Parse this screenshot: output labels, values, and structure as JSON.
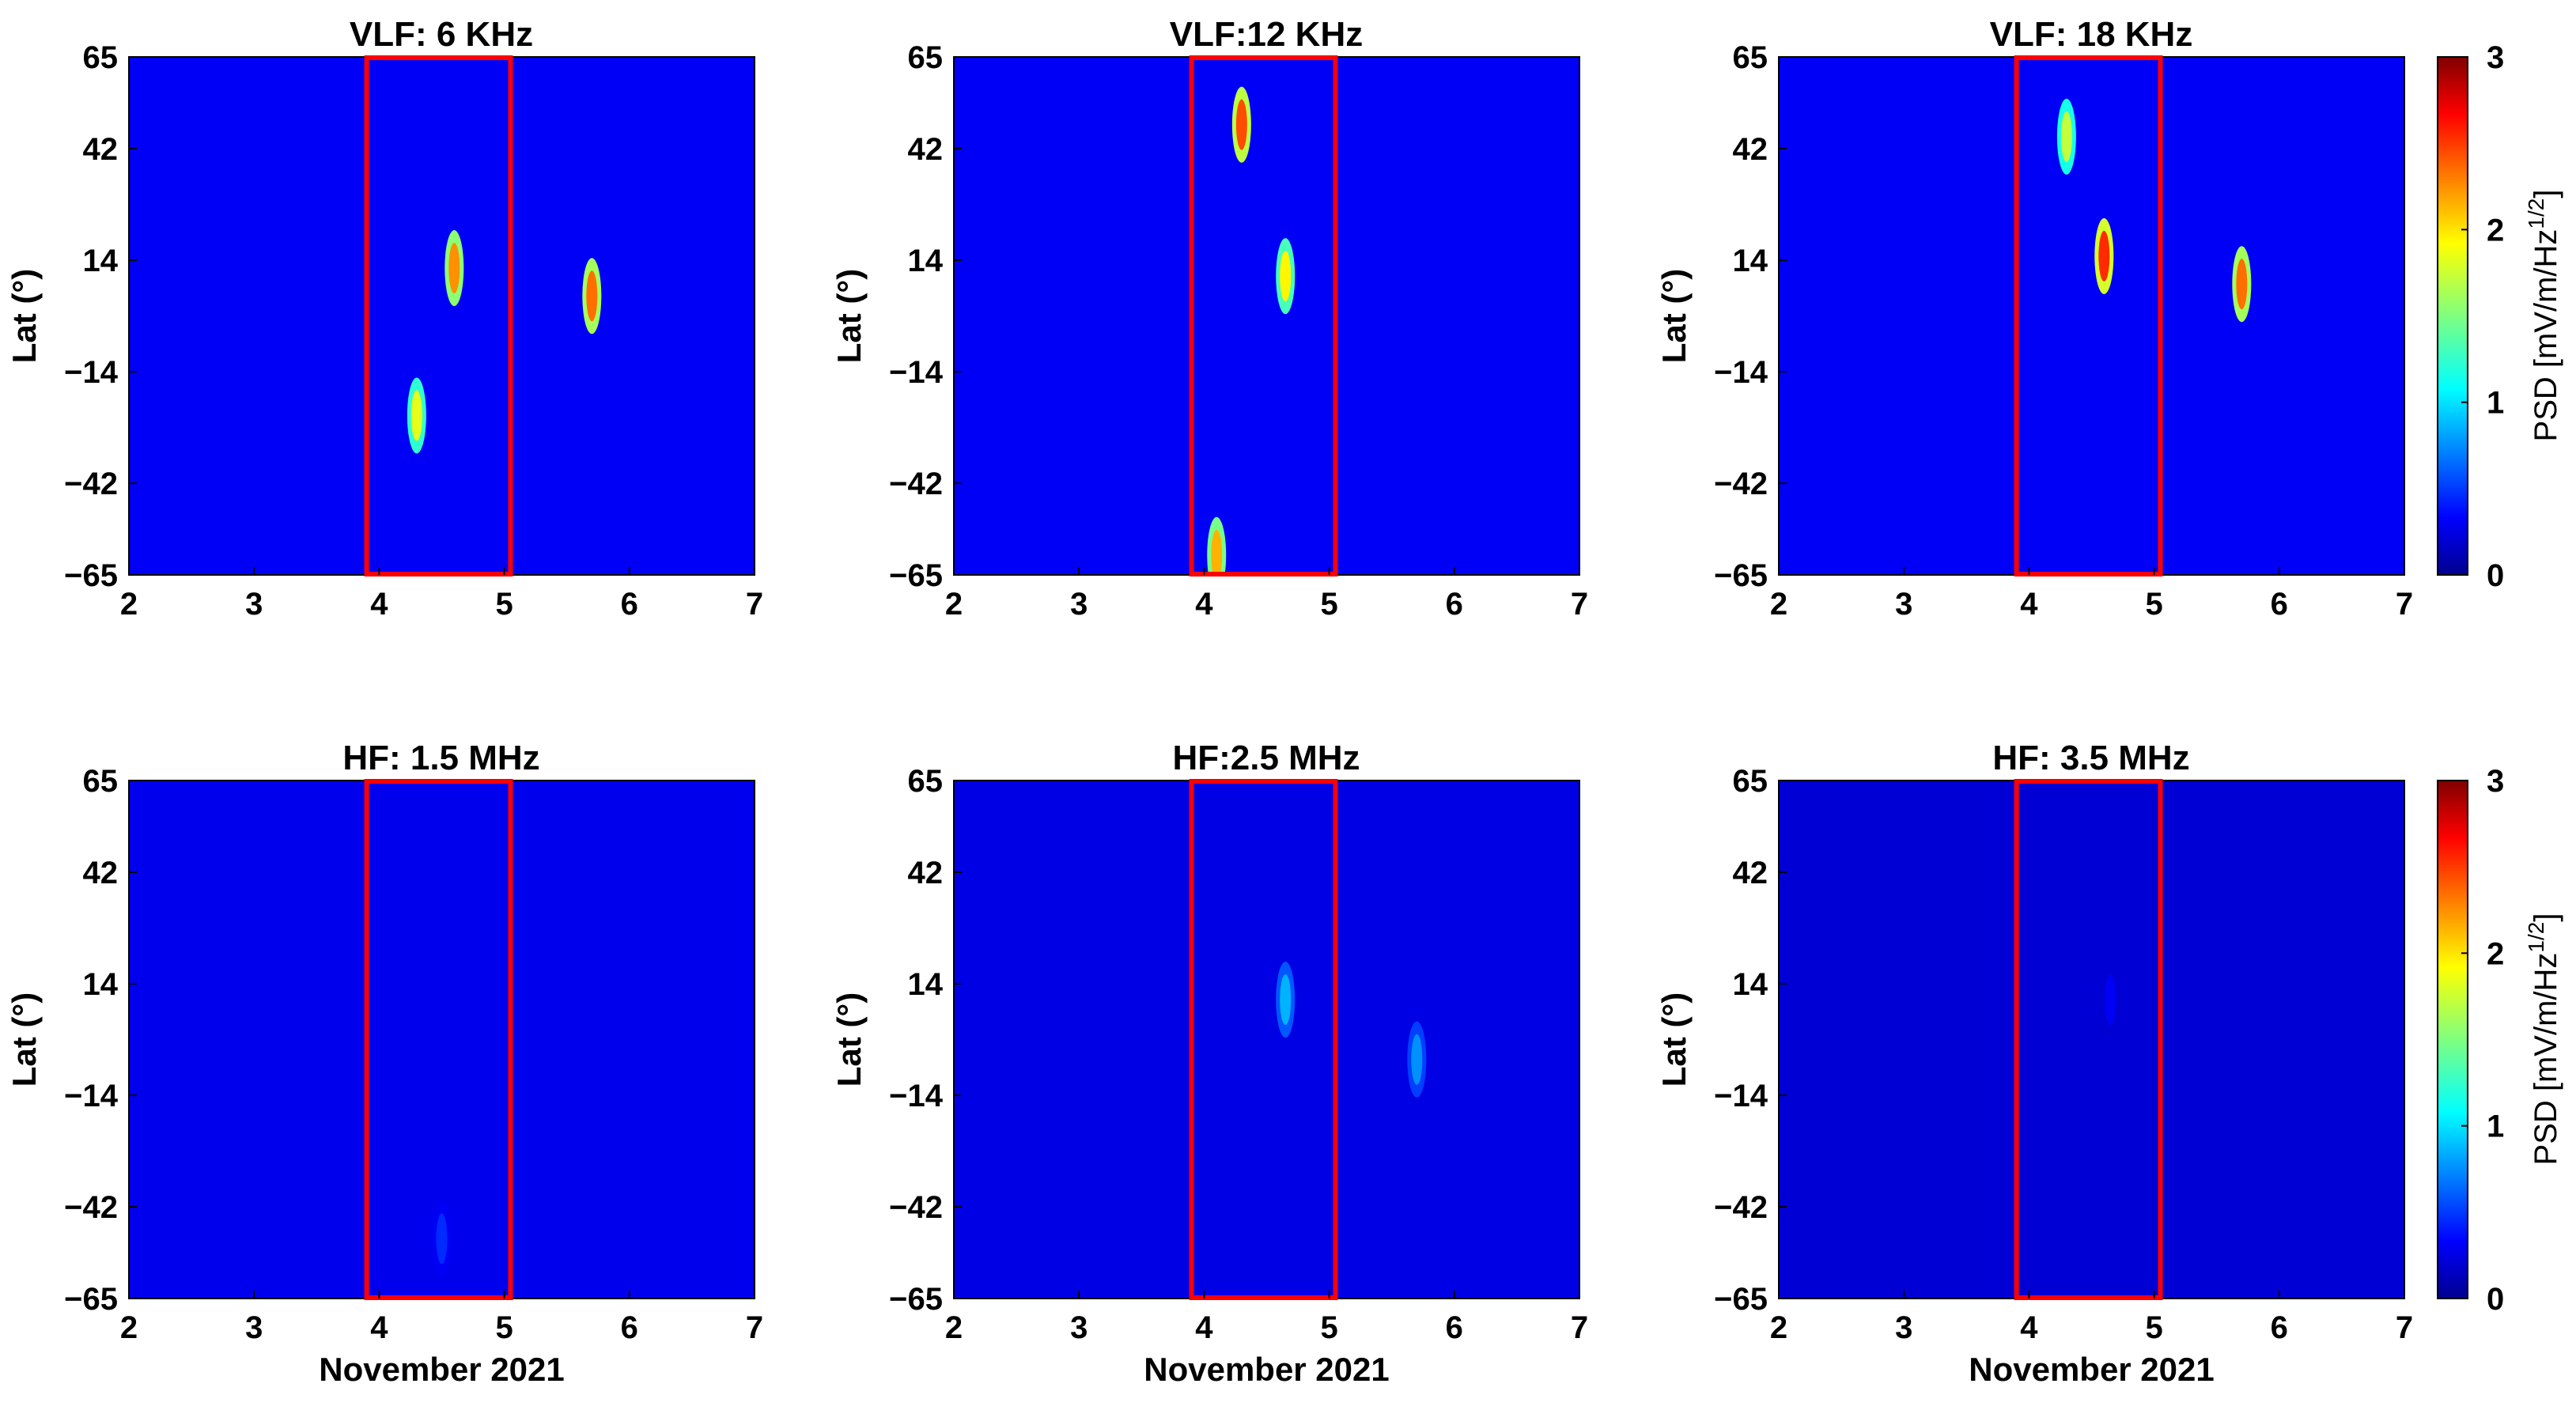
{
  "chart_data": [
    {
      "type": "heatmap",
      "title": "VLF: 6 KHz",
      "xlabel": "",
      "ylabel": "Lat (°)",
      "xlim": [
        2,
        7
      ],
      "ylim": [
        -65,
        65
      ],
      "xticks": [
        "2",
        "3",
        "4",
        "5",
        "6",
        "7"
      ],
      "yticks": [
        "65",
        "42",
        "14",
        "-14",
        "-42",
        "-65"
      ],
      "highlight_box": {
        "x_from": 3.9,
        "x_to": 5.05,
        "color": "#ff0000"
      },
      "intensity_level": "high",
      "hotspots": [
        {
          "x": 4.6,
          "y": 12,
          "value": 2.2
        },
        {
          "x": 5.7,
          "y": 5,
          "value": 2.3
        },
        {
          "x": 4.3,
          "y": -25,
          "value": 1.8
        }
      ]
    },
    {
      "type": "heatmap",
      "title": "VLF:12 KHz",
      "xlabel": "",
      "ylabel": "Lat (°)",
      "xlim": [
        2,
        7
      ],
      "ylim": [
        -65,
        65
      ],
      "xticks": [
        "2",
        "3",
        "4",
        "5",
        "6",
        "7"
      ],
      "yticks": [
        "65",
        "42",
        "14",
        "-14",
        "-42",
        "-65"
      ],
      "highlight_box": {
        "x_from": 3.9,
        "x_to": 5.05,
        "color": "#ff0000"
      },
      "intensity_level": "high",
      "hotspots": [
        {
          "x": 4.3,
          "y": 48,
          "value": 2.4
        },
        {
          "x": 4.65,
          "y": 10,
          "value": 1.9
        },
        {
          "x": 4.1,
          "y": -60,
          "value": 2.1
        }
      ]
    },
    {
      "type": "heatmap",
      "title": "VLF: 18 KHz",
      "xlabel": "",
      "ylabel": "Lat (°)",
      "xlim": [
        2,
        7
      ],
      "ylim": [
        -65,
        65
      ],
      "xticks": [
        "2",
        "3",
        "4",
        "5",
        "6",
        "7"
      ],
      "yticks": [
        "65",
        "42",
        "14",
        "-14",
        "-42",
        "-65"
      ],
      "highlight_box": {
        "x_from": 3.9,
        "x_to": 5.05,
        "color": "#ff0000"
      },
      "intensity_level": "high",
      "hotspots": [
        {
          "x": 4.6,
          "y": 15,
          "value": 2.5
        },
        {
          "x": 5.7,
          "y": 8,
          "value": 2.3
        },
        {
          "x": 4.3,
          "y": 45,
          "value": 1.7
        }
      ]
    },
    {
      "type": "heatmap",
      "title": "HF: 1.5 MHz",
      "xlabel": "November 2021",
      "ylabel": "Lat (°)",
      "xlim": [
        2,
        7
      ],
      "ylim": [
        -65,
        65
      ],
      "xticks": [
        "2",
        "3",
        "4",
        "5",
        "6",
        "7"
      ],
      "yticks": [
        "65",
        "42",
        "14",
        "-14",
        "-42",
        "-65"
      ],
      "highlight_box": {
        "x_from": 3.9,
        "x_to": 5.05,
        "color": "#ff0000"
      },
      "intensity_level": "low",
      "hotspots": [
        {
          "x": 4.5,
          "y": -50,
          "value": 0.5
        }
      ]
    },
    {
      "type": "heatmap",
      "title": "HF:2.5 MHz",
      "xlabel": "November 2021",
      "ylabel": "Lat (°)",
      "xlim": [
        2,
        7
      ],
      "ylim": [
        -65,
        65
      ],
      "xticks": [
        "2",
        "3",
        "4",
        "5",
        "6",
        "7"
      ],
      "yticks": [
        "65",
        "42",
        "14",
        "-14",
        "-42",
        "-65"
      ],
      "highlight_box": {
        "x_from": 3.9,
        "x_to": 5.05,
        "color": "#ff0000"
      },
      "intensity_level": "medium",
      "hotspots": [
        {
          "x": 4.65,
          "y": 10,
          "value": 0.9
        },
        {
          "x": 5.7,
          "y": -5,
          "value": 0.8
        }
      ]
    },
    {
      "type": "heatmap",
      "title": "HF: 3.5 MHz",
      "xlabel": "November 2021",
      "ylabel": "Lat (°)",
      "xlim": [
        2,
        7
      ],
      "ylim": [
        -65,
        65
      ],
      "xticks": [
        "2",
        "3",
        "4",
        "5",
        "6",
        "7"
      ],
      "yticks": [
        "65",
        "42",
        "14",
        "-14",
        "-42",
        "-65"
      ],
      "highlight_box": {
        "x_from": 3.9,
        "x_to": 5.05,
        "color": "#ff0000"
      },
      "intensity_level": "very-low",
      "hotspots": [
        {
          "x": 4.65,
          "y": 10,
          "value": 0.35
        }
      ]
    }
  ],
  "colorbars": [
    {
      "label": "PSD [mV/m/Hz",
      "label_exponent": "1/2",
      "label_close": "]",
      "range": [
        0,
        3
      ],
      "ticks": [
        "0",
        "1",
        "2",
        "3"
      ],
      "colormap": "jet"
    },
    {
      "label": "PSD [mV/m/Hz",
      "label_exponent": "1/2",
      "label_close": "]",
      "range": [
        0,
        3
      ],
      "ticks": [
        "0",
        "1",
        "2",
        "3"
      ],
      "colormap": "jet"
    }
  ]
}
